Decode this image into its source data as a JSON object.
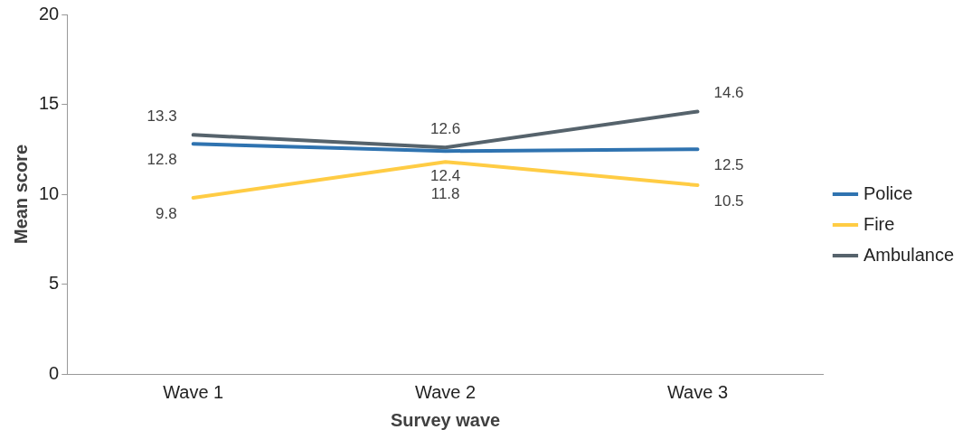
{
  "chart_data": {
    "type": "line",
    "xlabel": "Survey wave",
    "ylabel": "Mean score",
    "categories": [
      "Wave 1",
      "Wave 2",
      "Wave 3"
    ],
    "series": [
      {
        "name": "Police",
        "color": "#2f73b0",
        "values": [
          12.8,
          12.4,
          12.5
        ]
      },
      {
        "name": "Fire",
        "color": "#ffcc44",
        "values": [
          9.8,
          11.8,
          10.5
        ]
      },
      {
        "name": "Ambulance",
        "color": "#56636c",
        "values": [
          13.3,
          12.6,
          14.6
        ]
      }
    ],
    "ylim": [
      0,
      20
    ],
    "yticks": [
      0,
      5,
      10,
      15,
      20
    ],
    "grid": false,
    "legend": "right",
    "marker": "none",
    "line_style": "solid",
    "data_labels": true
  }
}
